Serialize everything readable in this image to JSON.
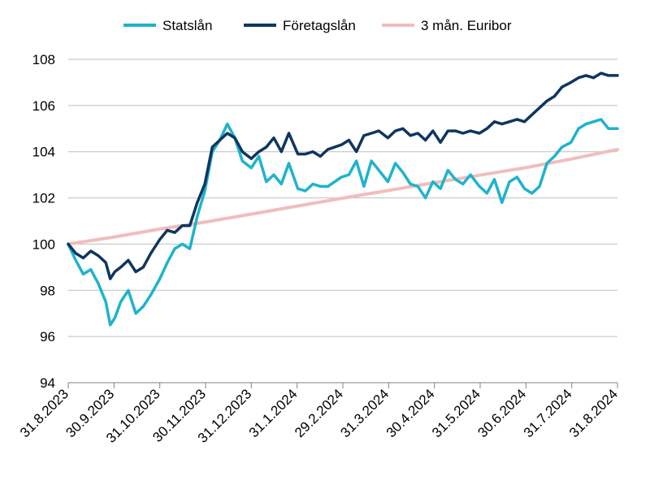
{
  "chart_data": {
    "type": "line",
    "title": "",
    "xlabel": "",
    "ylabel": "",
    "ylim": [
      94,
      108
    ],
    "yticks": [
      94,
      96,
      98,
      100,
      102,
      104,
      106,
      108
    ],
    "x_tick_labels": [
      "31.8.2023",
      "30.9.2023",
      "31.10.2023",
      "30.11.2023",
      "31.12.2023",
      "31.1.2024",
      "29.2.2024",
      "31.3.2024",
      "30.4.2024",
      "31.5.2024",
      "30.6.2024",
      "31.7.2024",
      "31.8.2024"
    ],
    "grid": "horizontal",
    "legend_position": "top-center",
    "series": [
      {
        "name": "Statslån",
        "color": "#1fb3cc",
        "x": [
          "2023-08-31",
          "2023-09-05",
          "2023-09-10",
          "2023-09-15",
          "2023-09-20",
          "2023-09-25",
          "2023-09-28",
          "2023-10-01",
          "2023-10-05",
          "2023-10-10",
          "2023-10-15",
          "2023-10-20",
          "2023-10-25",
          "2023-10-31",
          "2023-11-05",
          "2023-11-10",
          "2023-11-15",
          "2023-11-20",
          "2023-11-25",
          "2023-11-30",
          "2023-12-05",
          "2023-12-10",
          "2023-12-15",
          "2023-12-20",
          "2023-12-25",
          "2023-12-31",
          "2024-01-05",
          "2024-01-10",
          "2024-01-15",
          "2024-01-20",
          "2024-01-25",
          "2024-01-31",
          "2024-02-05",
          "2024-02-10",
          "2024-02-15",
          "2024-02-20",
          "2024-02-29",
          "2024-03-05",
          "2024-03-10",
          "2024-03-15",
          "2024-03-20",
          "2024-03-25",
          "2024-03-31",
          "2024-04-05",
          "2024-04-10",
          "2024-04-15",
          "2024-04-20",
          "2024-04-25",
          "2024-04-30",
          "2024-05-05",
          "2024-05-10",
          "2024-05-15",
          "2024-05-20",
          "2024-05-25",
          "2024-05-31",
          "2024-06-05",
          "2024-06-10",
          "2024-06-15",
          "2024-06-20",
          "2024-06-25",
          "2024-06-30",
          "2024-07-05",
          "2024-07-10",
          "2024-07-15",
          "2024-07-20",
          "2024-07-25",
          "2024-07-31",
          "2024-08-05",
          "2024-08-10",
          "2024-08-15",
          "2024-08-20",
          "2024-08-25",
          "2024-08-31"
        ],
        "values": [
          100.0,
          99.3,
          98.7,
          98.9,
          98.3,
          97.5,
          96.5,
          96.8,
          97.5,
          98.0,
          97.0,
          97.3,
          97.8,
          98.5,
          99.2,
          99.8,
          100.0,
          99.8,
          101.2,
          102.3,
          104.0,
          104.5,
          105.2,
          104.6,
          103.6,
          103.3,
          103.8,
          102.7,
          103.0,
          102.6,
          103.5,
          102.4,
          102.3,
          102.6,
          102.5,
          102.5,
          102.9,
          103.0,
          103.6,
          102.5,
          103.6,
          103.2,
          102.7,
          103.5,
          103.1,
          102.6,
          102.5,
          102.0,
          102.7,
          102.4,
          103.2,
          102.8,
          102.6,
          103.0,
          102.5,
          102.2,
          102.8,
          101.8,
          102.7,
          102.9,
          102.4,
          102.2,
          102.5,
          103.5,
          103.8,
          104.2,
          104.4,
          105.0,
          105.2,
          105.3,
          105.4,
          105.0,
          105.0
        ]
      },
      {
        "name": "Företagslån",
        "color": "#0e3660",
        "x": [
          "2023-08-31",
          "2023-09-05",
          "2023-09-10",
          "2023-09-15",
          "2023-09-20",
          "2023-09-25",
          "2023-09-28",
          "2023-10-01",
          "2023-10-05",
          "2023-10-10",
          "2023-10-15",
          "2023-10-20",
          "2023-10-25",
          "2023-10-31",
          "2023-11-05",
          "2023-11-10",
          "2023-11-15",
          "2023-11-20",
          "2023-11-25",
          "2023-11-30",
          "2023-12-05",
          "2023-12-10",
          "2023-12-15",
          "2023-12-20",
          "2023-12-25",
          "2023-12-31",
          "2024-01-05",
          "2024-01-10",
          "2024-01-15",
          "2024-01-20",
          "2024-01-25",
          "2024-01-31",
          "2024-02-05",
          "2024-02-10",
          "2024-02-15",
          "2024-02-20",
          "2024-02-29",
          "2024-03-05",
          "2024-03-10",
          "2024-03-15",
          "2024-03-20",
          "2024-03-25",
          "2024-03-31",
          "2024-04-05",
          "2024-04-10",
          "2024-04-15",
          "2024-04-20",
          "2024-04-25",
          "2024-04-30",
          "2024-05-05",
          "2024-05-10",
          "2024-05-15",
          "2024-05-20",
          "2024-05-25",
          "2024-05-31",
          "2024-06-05",
          "2024-06-10",
          "2024-06-15",
          "2024-06-20",
          "2024-06-25",
          "2024-06-30",
          "2024-07-05",
          "2024-07-10",
          "2024-07-15",
          "2024-07-20",
          "2024-07-25",
          "2024-07-31",
          "2024-08-05",
          "2024-08-10",
          "2024-08-15",
          "2024-08-20",
          "2024-08-25",
          "2024-08-31"
        ],
        "values": [
          100.0,
          99.6,
          99.4,
          99.7,
          99.5,
          99.2,
          98.5,
          98.8,
          99.0,
          99.3,
          98.8,
          99.0,
          99.6,
          100.2,
          100.6,
          100.5,
          100.8,
          100.8,
          101.8,
          102.6,
          104.2,
          104.5,
          104.8,
          104.6,
          104.0,
          103.7,
          104.0,
          104.2,
          104.6,
          104.0,
          104.8,
          103.9,
          103.9,
          104.0,
          103.8,
          104.1,
          104.3,
          104.5,
          104.0,
          104.7,
          104.8,
          104.9,
          104.6,
          104.9,
          105.0,
          104.7,
          104.8,
          104.5,
          104.9,
          104.4,
          104.9,
          104.9,
          104.8,
          104.9,
          104.8,
          105.0,
          105.3,
          105.2,
          105.3,
          105.4,
          105.3,
          105.6,
          105.9,
          106.2,
          106.4,
          106.8,
          107.0,
          107.2,
          107.3,
          107.2,
          107.4,
          107.3,
          107.3
        ]
      },
      {
        "name": "3 mån. Euribor",
        "color": "#f0bdbd",
        "x": [
          "2023-08-31",
          "2023-09-30",
          "2023-10-31",
          "2023-11-30",
          "2023-12-31",
          "2024-01-31",
          "2024-02-29",
          "2024-03-31",
          "2024-04-30",
          "2024-05-31",
          "2024-06-30",
          "2024-07-31",
          "2024-08-31"
        ],
        "values": [
          100.0,
          100.3,
          100.65,
          100.95,
          101.3,
          101.65,
          101.98,
          102.32,
          102.65,
          102.98,
          103.3,
          103.68,
          104.1
        ]
      }
    ]
  }
}
